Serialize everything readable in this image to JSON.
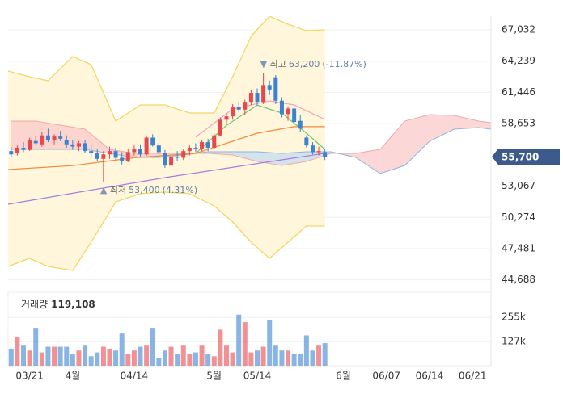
{
  "chart_data": {
    "type": "candlestick",
    "x": [
      0,
      1,
      2,
      3,
      4,
      5,
      6,
      7,
      8,
      9,
      10,
      11,
      12,
      13,
      14,
      15,
      16,
      17,
      18,
      19,
      20,
      21,
      22,
      23,
      24,
      25,
      26,
      27,
      28,
      29,
      30,
      31,
      32,
      33,
      34,
      35,
      36,
      37,
      38,
      39,
      40,
      41,
      42,
      43,
      44,
      45,
      46,
      47,
      48,
      49,
      50,
      51
    ],
    "open": [
      56200,
      56000,
      56500,
      56300,
      57100,
      56800,
      57600,
      57200,
      57500,
      57200,
      56800,
      56600,
      56900,
      56200,
      56000,
      55500,
      55900,
      56200,
      55600,
      55300,
      56100,
      56400,
      55900,
      57400,
      56700,
      56000,
      54900,
      55700,
      55600,
      56200,
      56500,
      56400,
      57000,
      56500,
      57600,
      59000,
      59300,
      60100,
      59900,
      60600,
      61400,
      60600,
      62100,
      62800,
      60700,
      59500,
      60000,
      58900,
      57400,
      56700,
      56100,
      56100
    ],
    "high": [
      56600,
      56700,
      57000,
      57400,
      57500,
      57900,
      58200,
      57700,
      58000,
      57600,
      57200,
      57100,
      57200,
      56700,
      56400,
      56200,
      56600,
      56500,
      56100,
      56400,
      56700,
      56800,
      57600,
      57700,
      56900,
      56300,
      55900,
      56200,
      56400,
      56700,
      56900,
      57200,
      57300,
      57800,
      59200,
      59600,
      60400,
      60600,
      60800,
      61700,
      61800,
      63200,
      62500,
      63000,
      61000,
      60200,
      60300,
      59400,
      57600,
      57000,
      56600,
      56400
    ],
    "low": [
      55600,
      55800,
      56100,
      56200,
      56700,
      56600,
      57000,
      56800,
      57100,
      56500,
      56300,
      56200,
      56000,
      55600,
      55300,
      53400,
      55500,
      55400,
      55000,
      55200,
      55800,
      55700,
      55800,
      56600,
      55900,
      54700,
      54800,
      55300,
      55400,
      55800,
      56100,
      56200,
      56200,
      56400,
      57500,
      58600,
      59000,
      59700,
      59400,
      60300,
      60300,
      60400,
      61200,
      60400,
      59200,
      58900,
      58500,
      57900,
      56500,
      55900,
      55800,
      55400
    ],
    "close": [
      55900,
      56500,
      56300,
      57200,
      56900,
      57600,
      57200,
      57500,
      57300,
      56800,
      56600,
      56900,
      56200,
      56000,
      55500,
      55900,
      56200,
      55600,
      55300,
      56100,
      56400,
      55900,
      57400,
      56700,
      56100,
      54900,
      55700,
      55600,
      56200,
      56500,
      56400,
      57000,
      56500,
      57600,
      59000,
      59300,
      60100,
      59900,
      60600,
      61400,
      60600,
      62100,
      61700,
      60700,
      59500,
      60000,
      58800,
      58200,
      56700,
      56100,
      56200,
      55700
    ],
    "up_color": "#e8474d",
    "down_color": "#3b82d0",
    "xlim": [
      -0.5,
      78
    ],
    "xticks": [
      {
        "value": 3,
        "label": "03/21"
      },
      {
        "value": 10,
        "label": "4월"
      },
      {
        "value": 20,
        "label": "04/14"
      },
      {
        "value": 33,
        "label": "5월"
      },
      {
        "value": 40,
        "label": "05/14"
      },
      {
        "value": 54,
        "label": "6월"
      },
      {
        "value": 61,
        "label": "06/07"
      },
      {
        "value": 68,
        "label": "06/14"
      },
      {
        "value": 75,
        "label": "06/21"
      }
    ],
    "ylim": [
      44088,
      68259
    ],
    "yticks": [
      {
        "value": 67032,
        "label": "67,032"
      },
      {
        "value": 64239,
        "label": "64,239"
      },
      {
        "value": 61446,
        "label": "61,446"
      },
      {
        "value": 58653,
        "label": "58,653"
      },
      {
        "value": 53067,
        "label": "53,067"
      },
      {
        "value": 50274,
        "label": "50,274"
      },
      {
        "value": 47481,
        "label": "47,481"
      },
      {
        "value": 44688,
        "label": "44,688"
      }
    ],
    "grid": true,
    "bollinger": {
      "color": "#f2d766",
      "fill": "#fff6dc",
      "x": [
        -0.5,
        3,
        6,
        10,
        13,
        17,
        21,
        25,
        29,
        33,
        36,
        39,
        42,
        45,
        48,
        51
      ],
      "upper": [
        63352,
        62847,
        62487,
        64651,
        63930,
        58879,
        60322,
        60322,
        59600,
        59600,
        62847,
        66455,
        68258,
        67537,
        66960,
        67032
      ],
      "lower": [
        45892,
        46613,
        45892,
        45531,
        48057,
        51665,
        52386,
        52530,
        52386,
        51304,
        49861,
        48057,
        46613,
        48057,
        49500,
        49500
      ]
    },
    "cloud": {
      "up_fill": "#f9c9c9",
      "down_fill": "#c6dcef",
      "up_line": "#f2a9a9",
      "down_line": "#8fb6dd",
      "x": [
        0,
        4,
        8,
        12,
        16,
        20,
        24,
        28,
        32,
        36,
        40,
        44,
        48,
        52,
        56,
        60,
        64,
        68,
        72,
        76,
        78
      ],
      "span_a": [
        58879,
        58879,
        58518,
        58158,
        56354,
        55993,
        55993,
        55993,
        55993,
        55849,
        55271,
        54911,
        55271,
        55993,
        55993,
        56354,
        58879,
        59456,
        59384,
        58879,
        58735
      ],
      "span_b": [
        56354,
        56354,
        56354,
        56354,
        55993,
        55632,
        55632,
        55849,
        56137,
        56137,
        56137,
        55993,
        56137,
        56137,
        55632,
        54189,
        54911,
        57075,
        58158,
        58302,
        58158
      ]
    },
    "lines": [
      {
        "color": "#a77be0",
        "x": [
          -0.5,
          25,
          51
        ],
        "values": [
          51448,
          53828,
          56000
        ]
      },
      {
        "color": "#f08a3c",
        "x": [
          -0.5,
          10,
          20,
          30,
          40,
          46,
          51
        ],
        "values": [
          54550,
          54900,
          55600,
          55990,
          57800,
          58380,
          58380
        ]
      },
      {
        "color": "#f3a3b8",
        "x": [
          30,
          36,
          42,
          46,
          51
        ],
        "values": [
          57450,
          59960,
          60680,
          60320,
          59020
        ]
      },
      {
        "color": "#6cc46c",
        "x": [
          30,
          35,
          40,
          44,
          48,
          51
        ],
        "values": [
          56000,
          58500,
          60300,
          59600,
          57800,
          56350
        ]
      }
    ],
    "high_note": {
      "text": "최고",
      "value": 63200,
      "value_label": "63,200",
      "change": "(-11.87%)"
    },
    "low_note": {
      "text": "최저",
      "value": 53400,
      "value_label": "53,400",
      "change": "(4.31%)"
    },
    "last_price": {
      "value": 55700,
      "label": "55,700",
      "color": "#3d5a8c"
    },
    "volume": {
      "label": "거래량",
      "current": {
        "value": 119108,
        "label": "119,108"
      },
      "values": [
        90000,
        150000,
        110000,
        80000,
        200000,
        70000,
        100000,
        100000,
        100000,
        100000,
        60000,
        80000,
        110000,
        50000,
        70000,
        100000,
        90000,
        80000,
        170000,
        60000,
        80000,
        100000,
        110000,
        200000,
        40000,
        80000,
        100000,
        60000,
        110000,
        60000,
        70000,
        110000,
        60000,
        50000,
        190000,
        110000,
        70000,
        270000,
        230000,
        70000,
        80000,
        100000,
        240000,
        110000,
        80000,
        80000,
        60000,
        60000,
        160000,
        80000,
        110000,
        119108
      ],
      "ylim": [
        0,
        388000
      ],
      "yticks": [
        {
          "value": 255000,
          "label": "255k"
        },
        {
          "value": 127000,
          "label": "127k"
        }
      ]
    }
  }
}
